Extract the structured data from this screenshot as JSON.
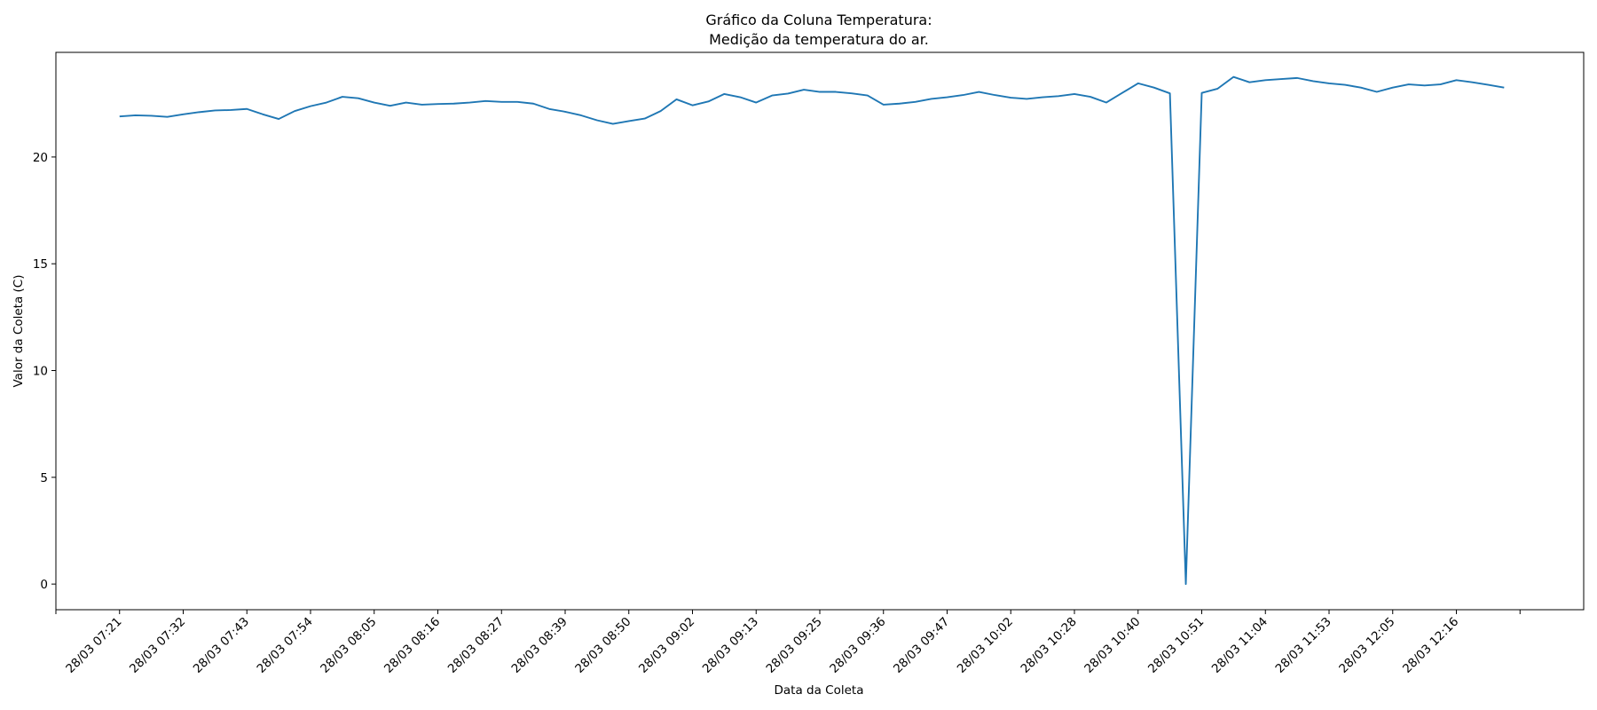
{
  "chart_data": {
    "type": "line",
    "title_line1": "Gráfico da Coluna Temperatura:",
    "title_line2": "Medição da temperatura do ar.",
    "xlabel": "Data da Coleta",
    "ylabel": "Valor da Coleta (C)",
    "ylim": [
      -1.2,
      24.9
    ],
    "yticks": [
      0,
      5,
      10,
      15,
      20
    ],
    "x_tick_labels": [
      "28/03 07:21",
      "28/03 07:32",
      "28/03 07:43",
      "28/03 07:54",
      "28/03 08:05",
      "28/03 08:16",
      "28/03 08:27",
      "28/03 08:39",
      "28/03 08:50",
      "28/03 09:02",
      "28/03 09:13",
      "28/03 09:25",
      "28/03 09:36",
      "28/03 09:47",
      "28/03 10:02",
      "28/03 10:28",
      "28/03 10:40",
      "28/03 10:51",
      "28/03 11:04",
      "28/03 11:53",
      "28/03 12:05",
      "28/03 12:16"
    ],
    "x_tick_every": 4,
    "x_range_points": [
      -4,
      92
    ],
    "grid": false,
    "color": "#1f77b4",
    "series": [
      {
        "values": [
          21.9,
          21.95,
          21.93,
          21.88,
          22.0,
          22.1,
          22.18,
          22.2,
          22.25,
          22.0,
          21.78,
          22.15,
          22.38,
          22.55,
          22.82,
          22.75,
          22.55,
          22.4,
          22.55,
          22.45,
          22.48,
          22.5,
          22.55,
          22.62,
          22.58,
          22.58,
          22.5,
          22.25,
          22.12,
          21.95,
          21.72,
          21.55,
          21.68,
          21.8,
          22.15,
          22.7,
          22.42,
          22.6,
          22.95,
          22.8,
          22.55,
          22.88,
          22.97,
          23.15,
          23.05,
          23.05,
          22.98,
          22.88,
          22.45,
          22.5,
          22.58,
          22.72,
          22.8,
          22.9,
          23.05,
          22.9,
          22.78,
          22.72,
          22.8,
          22.85,
          22.95,
          22.82,
          22.55,
          23.0,
          23.45,
          23.25,
          22.98,
          0.0,
          23.0,
          23.2,
          23.75,
          23.5,
          23.6,
          23.65,
          23.7,
          23.55,
          23.45,
          23.38,
          23.25,
          23.05,
          23.25,
          23.4,
          23.35,
          23.4,
          23.6,
          23.5,
          23.38,
          23.25
        ]
      }
    ]
  }
}
